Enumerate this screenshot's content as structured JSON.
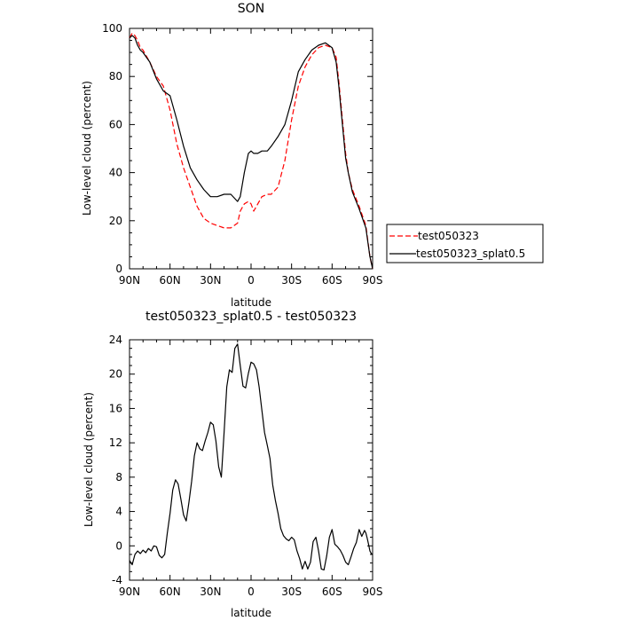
{
  "chart_data": [
    {
      "type": "line",
      "title": "SON",
      "xlabel": "latitude",
      "ylabel": "Low-level cloud (percent)",
      "xlim": [
        90,
        -90
      ],
      "ylim": [
        0,
        100
      ],
      "xticks": [
        90,
        60,
        30,
        0,
        -30,
        -60,
        -90
      ],
      "xticklabels": [
        "90N",
        "60N",
        "30N",
        "0",
        "30S",
        "60S",
        "90S"
      ],
      "yticks": [
        0,
        20,
        40,
        60,
        80,
        100
      ],
      "yticklabels": [
        "0",
        "20",
        "40",
        "60",
        "80",
        "100"
      ],
      "legend": "right",
      "grid": false,
      "series": [
        {
          "name": "test050323",
          "color": "#ff0000",
          "style": "dashed",
          "x": [
            90,
            88,
            86,
            84,
            82,
            80,
            75,
            70,
            65,
            60,
            55,
            50,
            45,
            40,
            35,
            30,
            25,
            20,
            15,
            10,
            8,
            5,
            2,
            0,
            -2,
            -5,
            -8,
            -12,
            -15,
            -20,
            -25,
            -30,
            -35,
            -40,
            -45,
            -50,
            -55,
            -60,
            -63,
            -65,
            -68,
            -70,
            -72,
            -75,
            -80,
            -85,
            -88,
            -90
          ],
          "y": [
            96,
            98,
            97,
            95,
            92,
            91,
            86,
            80,
            76,
            66,
            52,
            42,
            34,
            26,
            21,
            19,
            18,
            17,
            17,
            19,
            24,
            27,
            28,
            27,
            24,
            27,
            30,
            31,
            31,
            34,
            45,
            62,
            76,
            84,
            89,
            92,
            93,
            92,
            88,
            78,
            60,
            48,
            40,
            33,
            26,
            18,
            5,
            0
          ]
        },
        {
          "name": "test050323_splat0.5",
          "color": "#000000",
          "style": "solid",
          "x": [
            90,
            88,
            86,
            84,
            82,
            80,
            75,
            70,
            65,
            60,
            55,
            50,
            45,
            40,
            35,
            30,
            25,
            20,
            15,
            10,
            8,
            5,
            2,
            0,
            -2,
            -5,
            -8,
            -12,
            -15,
            -20,
            -25,
            -30,
            -35,
            -40,
            -45,
            -50,
            -55,
            -60,
            -63,
            -65,
            -68,
            -70,
            -72,
            -75,
            -80,
            -85,
            -88,
            -90
          ],
          "y": [
            96,
            97,
            96,
            93,
            91,
            90,
            86,
            79,
            74,
            72,
            62,
            51,
            42,
            37,
            33,
            30,
            30,
            31,
            31,
            28,
            30,
            40,
            48,
            49,
            48,
            48,
            49,
            49,
            51,
            55,
            60,
            70,
            82,
            87,
            91,
            93,
            94,
            92,
            86,
            76,
            58,
            46,
            40,
            32,
            25,
            17,
            5,
            0
          ]
        }
      ]
    },
    {
      "type": "line",
      "title": "test050323_splat0.5 - test050323",
      "xlabel": "latitude",
      "ylabel": "Low-level cloud (percent)",
      "xlim": [
        90,
        -90
      ],
      "ylim": [
        -4,
        24
      ],
      "xticks": [
        90,
        60,
        30,
        0,
        -30,
        -60,
        -90
      ],
      "xticklabels": [
        "90N",
        "60N",
        "30N",
        "0",
        "30S",
        "60S",
        "90S"
      ],
      "yticks": [
        -4,
        0,
        4,
        8,
        12,
        16,
        20,
        24
      ],
      "yticklabels": [
        "-4",
        "0",
        "4",
        "8",
        "12",
        "16",
        "20",
        "24"
      ],
      "grid": false,
      "series": [
        {
          "color": "#000000",
          "style": "solid",
          "x": [
            90,
            88,
            86,
            84,
            82,
            80,
            78,
            76,
            74,
            72,
            70,
            68,
            66,
            64,
            62,
            60,
            58,
            56,
            54,
            52,
            50,
            48,
            46,
            44,
            42,
            40,
            38,
            36,
            34,
            32,
            30,
            28,
            26,
            24,
            22,
            20,
            18,
            16,
            14,
            12,
            10,
            8,
            6,
            4,
            2,
            0,
            -2,
            -4,
            -6,
            -8,
            -10,
            -12,
            -14,
            -16,
            -18,
            -20,
            -22,
            -24,
            -26,
            -28,
            -30,
            -32,
            -34,
            -36,
            -38,
            -40,
            -42,
            -44,
            -46,
            -48,
            -50,
            -52,
            -54,
            -56,
            -58,
            -60,
            -62,
            -64,
            -66,
            -68,
            -70,
            -72,
            -74,
            -76,
            -78,
            -80,
            -82,
            -84,
            -85,
            -86,
            -87,
            -88,
            -89,
            -90
          ],
          "y": [
            -1.7,
            -2.2,
            -1,
            -0.6,
            -0.9,
            -0.5,
            -0.8,
            -0.3,
            -0.6,
            0,
            -0.1,
            -1.1,
            -1.4,
            -1,
            1.5,
            3.8,
            6.5,
            7.7,
            7.2,
            5.5,
            3.6,
            2.9,
            5.1,
            7.5,
            10.5,
            12,
            11.3,
            11.1,
            12.2,
            13.2,
            14.4,
            14.1,
            12.2,
            9.2,
            8,
            13.2,
            18.5,
            20.5,
            20.2,
            23,
            23.5,
            21,
            18.6,
            18.4,
            20.1,
            21.4,
            21.2,
            20.5,
            18.5,
            15.8,
            13.2,
            11.7,
            10.2,
            7.1,
            5.3,
            3.8,
            2,
            1.2,
            0.8,
            0.6,
            1,
            0.7,
            -0.6,
            -1.5,
            -2.7,
            -1.8,
            -2.7,
            -1.9,
            0.5,
            1,
            -0.6,
            -2.7,
            -2.8,
            -1.2,
            1,
            1.9,
            0.2,
            -0.1,
            -0.5,
            -1.1,
            -1.9,
            -2.2,
            -1.3,
            -0.3,
            0.4,
            1.9,
            1.1,
            1.8,
            1.5,
            0.9,
            0.2,
            -0.6,
            -0.9,
            -1
          ]
        }
      ]
    }
  ]
}
